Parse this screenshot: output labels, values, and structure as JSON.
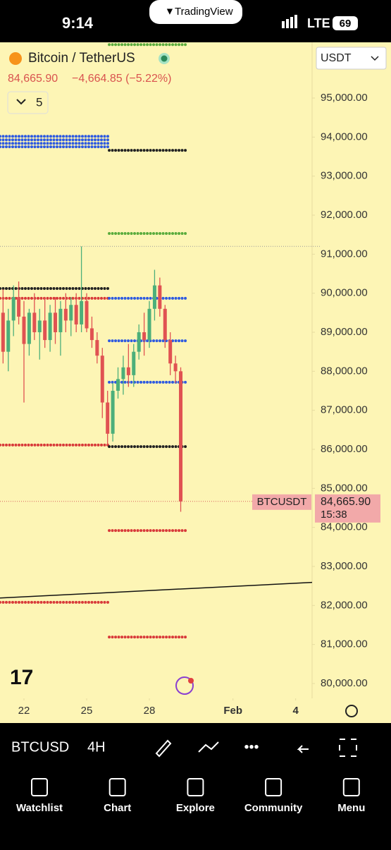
{
  "status_bar": {
    "time": "9:14",
    "app": "TradingView",
    "network": "LTE",
    "battery": "69"
  },
  "header": {
    "symbol": "Bitcoin / TetherUS",
    "price": "84,665.90",
    "change": "−4,664.85 (−5.22%)",
    "indicator_count": "5",
    "currency": "USDT"
  },
  "chart_data": {
    "type": "candlestick",
    "x": [
      21.0,
      21.25,
      21.5,
      21.75,
      22.0,
      22.25,
      22.5,
      22.75,
      23.0,
      23.25,
      23.5,
      23.75,
      24.0,
      24.25,
      24.5,
      24.75,
      25.0,
      25.25,
      25.5,
      25.75,
      26.0,
      26.25,
      26.5,
      26.75,
      27.0,
      27.25,
      27.5,
      27.75,
      28.0,
      28.25,
      28.5,
      28.75,
      29.0,
      29.25,
      29.5
    ],
    "open": [
      89500,
      88500,
      89300,
      89900,
      89400,
      88700,
      89500,
      89000,
      89300,
      88800,
      89500,
      89000,
      89600,
      89300,
      89700,
      89200,
      89800,
      89100,
      88800,
      88400,
      87200,
      86400,
      87500,
      87800,
      88100,
      87900,
      88500,
      89000,
      88800,
      89600,
      90200,
      89600,
      88800,
      88200,
      88000
    ],
    "high": [
      90100,
      89600,
      90200,
      90300,
      89800,
      89600,
      90000,
      89600,
      89900,
      89700,
      89900,
      89800,
      90000,
      89900,
      90000,
      91200,
      90000,
      89400,
      89000,
      88600,
      87500,
      87700,
      88100,
      88400,
      88700,
      88700,
      89200,
      89500,
      89800,
      90600,
      90400,
      89700,
      89000,
      88400,
      88100
    ],
    "low": [
      88200,
      88000,
      88900,
      89200,
      87200,
      88400,
      88800,
      88300,
      88600,
      88500,
      88700,
      88400,
      89000,
      88900,
      89000,
      89000,
      89000,
      88600,
      88200,
      86800,
      86100,
      86200,
      87300,
      87400,
      87600,
      87600,
      88300,
      88400,
      88600,
      89300,
      89400,
      88600,
      87900,
      87700,
      84400
    ],
    "close": [
      88500,
      89300,
      89900,
      89400,
      88700,
      89500,
      89000,
      89300,
      88800,
      89500,
      89000,
      89600,
      89300,
      89700,
      89200,
      89800,
      89100,
      88800,
      88400,
      87200,
      86400,
      87500,
      87800,
      88100,
      87900,
      88500,
      89000,
      88800,
      89600,
      90200,
      89600,
      88800,
      88200,
      88000,
      84665.9
    ],
    "up_color": "#4caf7a",
    "down_color": "#e05252",
    "levels": [
      {
        "color": "#5aab3c",
        "value": 96370,
        "x": [
          26.08,
          29.79
        ]
      },
      {
        "color": "#2f5be0",
        "value": 94020,
        "x": [
          20.854,
          26.08
        ]
      },
      {
        "color": "#2f5be0",
        "value": 93930,
        "x": [
          20.854,
          26.08
        ]
      },
      {
        "color": "#2f5be0",
        "value": 93840,
        "x": [
          20.854,
          26.08
        ]
      },
      {
        "color": "#2f5be0",
        "value": 93750,
        "x": [
          20.854,
          26.08
        ]
      },
      {
        "color": "#222222",
        "value": 93660,
        "x": [
          26.08,
          29.79
        ]
      },
      {
        "color": "#5aab3c",
        "value": 91530,
        "x": [
          26.08,
          29.79
        ]
      },
      {
        "color": "#222222",
        "value": 90120,
        "x": [
          20.854,
          26.08
        ]
      },
      {
        "color": "#d83a3a",
        "value": 89870,
        "x": [
          20.854,
          26.08
        ]
      },
      {
        "color": "#2f5be0",
        "value": 89870,
        "x": [
          26.08,
          29.79
        ]
      },
      {
        "color": "#2f5be0",
        "value": 88780,
        "x": [
          26.08,
          29.79
        ]
      },
      {
        "color": "#2f5be0",
        "value": 87720,
        "x": [
          26.08,
          29.79
        ]
      },
      {
        "color": "#d83a3a",
        "value": 86110,
        "x": [
          20.854,
          26.08
        ]
      },
      {
        "color": "#222222",
        "value": 86070,
        "x": [
          26.08,
          29.79
        ]
      },
      {
        "color": "#d83a3a",
        "value": 83920,
        "x": [
          26.08,
          29.79
        ]
      },
      {
        "color": "#d83a3a",
        "value": 82080,
        "x": [
          20.854,
          26.08
        ]
      },
      {
        "color": "#d83a3a",
        "value": 81190,
        "x": [
          26.08,
          29.79
        ]
      }
    ],
    "ref_line": {
      "value": 91200
    },
    "trend_line": {
      "x": [
        20.854,
        35.785
      ],
      "y": [
        82190,
        82590
      ]
    },
    "last_price": {
      "value": 84665.9,
      "symbol": "BTCUSDT",
      "label": "84,665.90",
      "countdown": "15:38"
    },
    "xlim": [
      20.854,
      35.785
    ],
    "ylim": [
      79620,
      96428
    ],
    "xticks": [
      22,
      25,
      28,
      {
        "value": 32,
        "label": "Feb"
      },
      {
        "value": 35,
        "label": "4"
      }
    ],
    "yticks": [
      {
        "value": 80000,
        "label": "80,000.00"
      },
      {
        "value": 81000,
        "label": "81,000.00"
      },
      {
        "value": 82000,
        "label": "82,000.00"
      },
      {
        "value": 83000,
        "label": "83,000.00"
      },
      {
        "value": 84000,
        "label": "84,000.00"
      },
      {
        "value": 85000,
        "label": "85,000.00"
      },
      {
        "value": 86000,
        "label": "86,000.00"
      },
      {
        "value": 87000,
        "label": "87,000.00"
      },
      {
        "value": 88000,
        "label": "88,000.00"
      },
      {
        "value": 89000,
        "label": "89,000.00"
      },
      {
        "value": 90000,
        "label": "90,000.00"
      },
      {
        "value": 91000,
        "label": "91,000.00"
      },
      {
        "value": 92000,
        "label": "92,000.00"
      },
      {
        "value": 93000,
        "label": "93,000.00"
      },
      {
        "value": 94000,
        "label": "94,000.00"
      },
      {
        "value": 95000,
        "label": "95,000.00"
      }
    ]
  },
  "toolbar": {
    "symbol": "BTCUSD",
    "interval": "4H"
  },
  "nav": {
    "items": [
      "Watchlist",
      "Chart",
      "Explore",
      "Community",
      "Menu"
    ]
  }
}
